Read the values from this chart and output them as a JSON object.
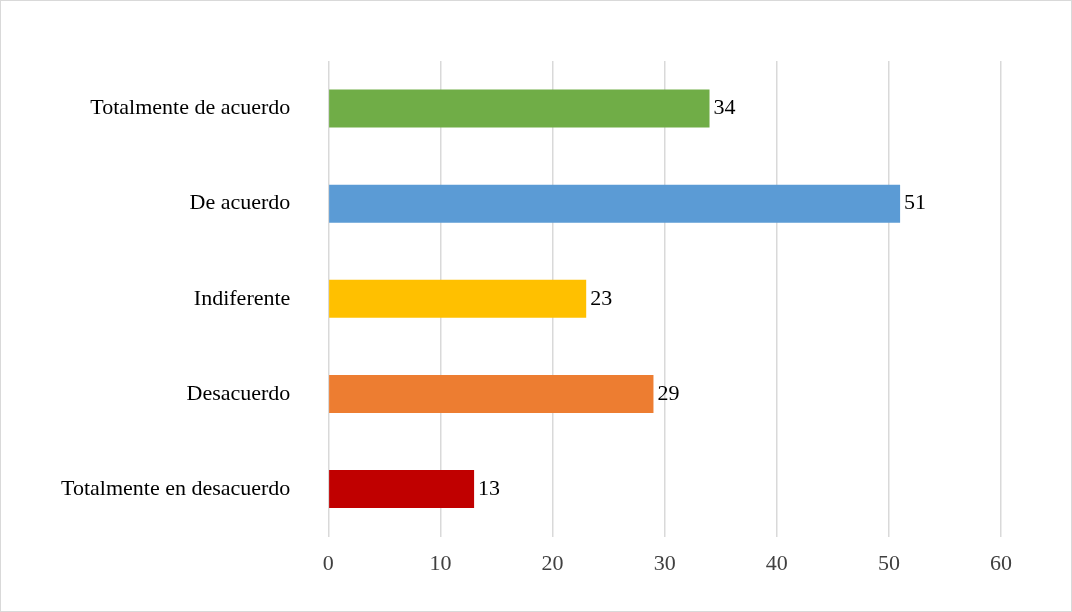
{
  "chart_data": {
    "type": "bar",
    "orientation": "horizontal",
    "categories": [
      "Totalmente de acuerdo",
      "De acuerdo",
      "Indiferente",
      "Desacuerdo",
      "Totalmente en desacuerdo"
    ],
    "values": [
      34,
      51,
      23,
      29,
      13
    ],
    "colors": [
      "#70ad47",
      "#5b9bd5",
      "#ffc000",
      "#ed7d31",
      "#c00000"
    ],
    "xlim": [
      0,
      60
    ],
    "xticks": [
      0,
      10,
      20,
      30,
      40,
      50,
      60
    ],
    "grid": "x",
    "data_labels": true
  }
}
